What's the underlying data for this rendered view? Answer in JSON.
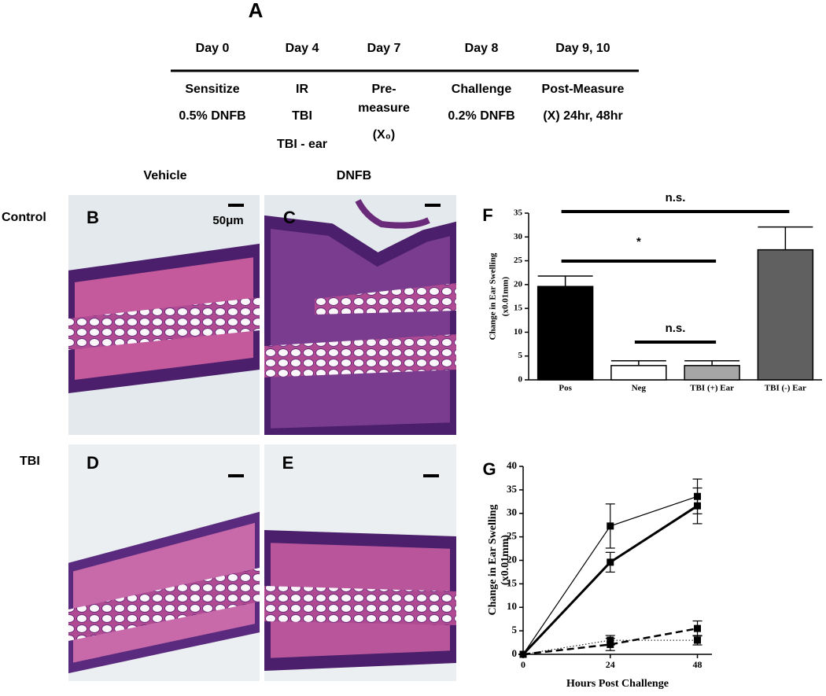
{
  "panel_a": {
    "label": "A",
    "columns": [
      {
        "day": "Day 0",
        "lines": [
          "Sensitize",
          "0.5% DNFB"
        ]
      },
      {
        "day": "Day 4",
        "lines": [
          "IR",
          "TBI",
          "TBI - ear"
        ]
      },
      {
        "day": "Day 7",
        "lines": [
          "Pre-",
          "measure",
          "(X₀)"
        ]
      },
      {
        "day": "Day 8",
        "lines": [
          "Challenge",
          "0.2% DNFB"
        ]
      },
      {
        "day": "Day 9, 10",
        "lines": [
          "Post-Measure",
          "(X) 24hr, 48hr"
        ]
      }
    ]
  },
  "histology": {
    "columns": [
      "Vehicle",
      "DNFB"
    ],
    "rows": [
      "Control",
      "TBI"
    ],
    "panels": [
      "B",
      "C",
      "D",
      "E"
    ],
    "scale_bar": "50μm"
  },
  "chart_data": [
    {
      "type": "bar",
      "panel": "F",
      "ylabel": [
        "Change in Ear Swelling",
        "(x0.01mm)"
      ],
      "categories": [
        "Pos",
        "Neg",
        "TBI (+) Ear",
        "TBI (-) Ear"
      ],
      "values": [
        19.6,
        3,
        3,
        27.3
      ],
      "errors": [
        2.2,
        1,
        1,
        4.8
      ],
      "colors": [
        "#000000",
        "#ffffff",
        "#a6a6a6",
        "#606060"
      ],
      "ylim": [
        0,
        35
      ],
      "yticks": [
        0,
        5,
        10,
        15,
        20,
        25,
        30,
        35
      ],
      "annotations": [
        "n.s.",
        "*",
        "n.s."
      ]
    },
    {
      "type": "line",
      "panel": "G",
      "ylabel": [
        "Change in Ear Swelling",
        "(x0.01mm)"
      ],
      "xlabel": "Hours Post Challenge",
      "x": [
        0,
        24,
        48
      ],
      "xlim": [
        0,
        52
      ],
      "xticks": [
        0,
        24,
        48
      ],
      "ylim": [
        0,
        40
      ],
      "yticks": [
        0,
        5,
        10,
        15,
        20,
        25,
        30,
        35,
        40
      ],
      "series": [
        {
          "color": "#000000",
          "style": "solid",
          "line_width": 1.2,
          "values": [
            0,
            27.3,
            33.6
          ],
          "errors": [
            0,
            4.7,
            3.7
          ]
        },
        {
          "color": "#000000",
          "style": "solid",
          "line_width": 3,
          "values": [
            0,
            19.6,
            31.6
          ],
          "errors": [
            0,
            2.1,
            3.8
          ]
        },
        {
          "color": "#000000",
          "style": "dashed",
          "line_width": 2.5,
          "values": [
            0,
            2.1,
            5.5
          ],
          "errors": [
            0,
            1.3,
            1.6
          ]
        },
        {
          "color": "#000000",
          "style": "dotted",
          "line_width": 1,
          "values": [
            0,
            3,
            3
          ],
          "errors": [
            0,
            1,
            1
          ]
        }
      ]
    }
  ]
}
